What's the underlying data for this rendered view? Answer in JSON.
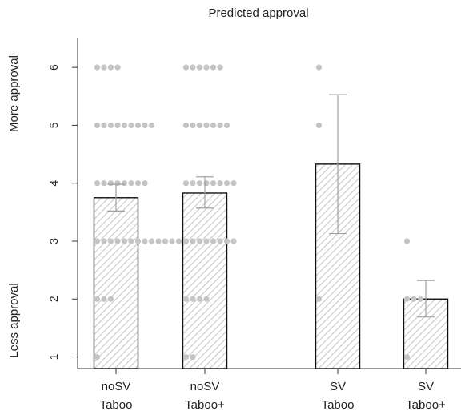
{
  "chart_data": {
    "type": "bar",
    "title": "Predicted approval",
    "ylabel_top": "More approval",
    "ylabel_bottom": "Less approval",
    "ylim": [
      0.8,
      6.5
    ],
    "yticks": [
      "1",
      "2",
      "3",
      "4",
      "5",
      "6"
    ],
    "categories": [
      {
        "line1": "noSV",
        "line2": "Taboo"
      },
      {
        "line1": "noSV",
        "line2": "Taboo+"
      },
      {
        "line1": "SV",
        "line2": "Taboo"
      },
      {
        "line1": "SV",
        "line2": "Taboo+"
      }
    ],
    "values": [
      3.75,
      3.83,
      4.33,
      2.0
    ],
    "error_low": [
      3.52,
      3.57,
      3.13,
      1.69
    ],
    "error_high": [
      3.98,
      4.11,
      5.53,
      2.32
    ],
    "points": [
      [
        {
          "y": 1,
          "n": 1
        },
        {
          "y": 2,
          "n": 3
        },
        {
          "y": 3,
          "n": 13
        },
        {
          "y": 4,
          "n": 8
        },
        {
          "y": 5,
          "n": 9
        },
        {
          "y": 6,
          "n": 4
        }
      ],
      [
        {
          "y": 1,
          "n": 2
        },
        {
          "y": 2,
          "n": 4
        },
        {
          "y": 3,
          "n": 8
        },
        {
          "y": 4,
          "n": 8
        },
        {
          "y": 5,
          "n": 7
        },
        {
          "y": 6,
          "n": 6
        }
      ],
      [
        {
          "y": 2,
          "n": 1
        },
        {
          "y": 5,
          "n": 1
        },
        {
          "y": 6,
          "n": 1
        }
      ],
      [
        {
          "y": 1,
          "n": 1
        },
        {
          "y": 2,
          "n": 3
        },
        {
          "y": 3,
          "n": 1
        }
      ]
    ],
    "grid": false,
    "colors": {
      "bar_stroke": "#111111",
      "hatch": "#c8c8c8",
      "point": "#c4c4c4",
      "error": "#a0a0a0"
    }
  }
}
